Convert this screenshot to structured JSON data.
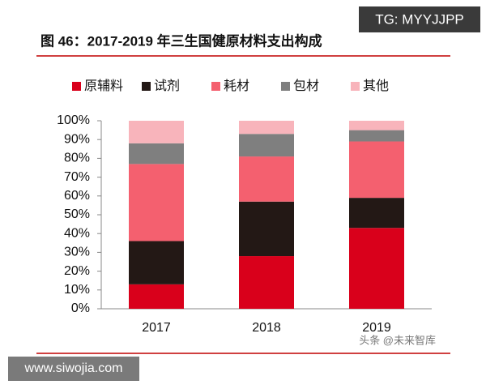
{
  "chart_data": {
    "type": "bar",
    "stacked": true,
    "title": "图 46：2017-2019 年三生国健原材料支出构成",
    "categories": [
      "2017",
      "2018",
      "2019"
    ],
    "series": [
      {
        "name": "原辅料",
        "color": "#d9001b",
        "values": [
          13,
          28,
          43
        ]
      },
      {
        "name": "试剂",
        "color": "#231815",
        "values": [
          23,
          29,
          16
        ]
      },
      {
        "name": "耗材",
        "color": "#f4606f",
        "values": [
          41,
          24,
          30
        ]
      },
      {
        "name": "包材",
        "color": "#7f7f7f",
        "values": [
          11,
          12,
          6
        ]
      },
      {
        "name": "其他",
        "color": "#f8b4bb",
        "values": [
          12,
          7,
          5
        ]
      }
    ],
    "ylim": [
      0,
      100
    ],
    "yticks": [
      {
        "value": 0,
        "label": "0%"
      },
      {
        "value": 10,
        "label": "10%"
      },
      {
        "value": 20,
        "label": "20%"
      },
      {
        "value": 30,
        "label": "30%"
      },
      {
        "value": 40,
        "label": "40%"
      },
      {
        "value": 50,
        "label": "50%"
      },
      {
        "value": 60,
        "label": "60%"
      },
      {
        "value": 70,
        "label": "70%"
      },
      {
        "value": 80,
        "label": "80%"
      },
      {
        "value": 90,
        "label": "90%"
      },
      {
        "value": 100,
        "label": "100%"
      }
    ],
    "grid": false,
    "legend": "top"
  },
  "watermarks": [
    "TG: MYYJJPP",
    "www.siwojia.com",
    "头条 @未来智库"
  ]
}
